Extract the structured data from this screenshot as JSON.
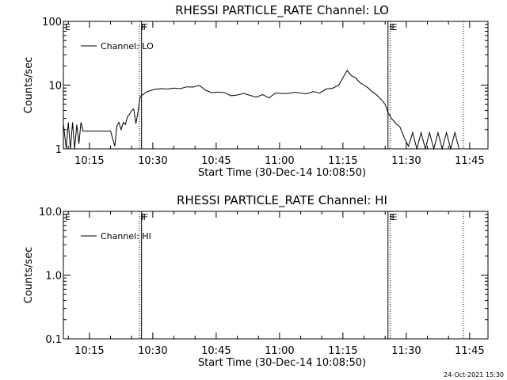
{
  "stamp": "24-Oct-2021 15:30",
  "chart_data": [
    {
      "type": "line",
      "title": "RHESSI PARTICLE_RATE Channel: LO",
      "xlabel": "Start Time (30-Dec-14 10:08:50)",
      "ylabel": "Counts/sec",
      "yscale": "log",
      "ylim": [
        1,
        100
      ],
      "yticks": [
        1,
        10,
        100
      ],
      "yticklabels": [
        "1",
        "10",
        "100"
      ],
      "xlim": [
        "10:08:50",
        "11:49:20"
      ],
      "xticks": [
        "10:15",
        "10:30",
        "10:45",
        "11:00",
        "11:15",
        "11:30",
        "11:45"
      ],
      "legend": {
        "placement": "top-left",
        "entries": [
          "Channel: LO"
        ]
      },
      "markers": [
        {
          "label": "E",
          "time": "10:08:50",
          "style": "none"
        },
        {
          "label": "F",
          "time": "10:26:50",
          "style": "dotted"
        },
        {
          "label": "F",
          "time": "10:27:20",
          "style": "solid"
        },
        {
          "label": "E",
          "time": "11:25:40",
          "style": "solid"
        },
        {
          "label": "E",
          "time": "11:26:10",
          "style": "dotted"
        },
        {
          "label": "",
          "time": "11:43:30",
          "style": "dotted"
        }
      ],
      "series": [
        {
          "x": [
            "10:08:50",
            "10:09:30",
            "10:10:00",
            "10:10:30",
            "10:11:00",
            "10:11:30",
            "10:12:00",
            "10:12:30",
            "10:13:00",
            "10:13:30",
            "10:14:00",
            "10:15:00",
            "10:16:00",
            "10:17:00",
            "10:18:00",
            "10:19:00",
            "10:20:00",
            "10:21:00",
            "10:21:30",
            "10:22:00",
            "10:22:30",
            "10:23:00",
            "10:23:30",
            "10:24:00",
            "10:24:30",
            "10:25:00",
            "10:25:30",
            "10:26:00",
            "10:26:30",
            "10:27:00",
            "10:27:30",
            "10:28:30",
            "10:29:30",
            "10:30:30",
            "10:32:00",
            "10:33:30",
            "10:35:00",
            "10:36:30",
            "10:38:00",
            "10:39:30",
            "10:41:00",
            "10:42:30",
            "10:44:00",
            "10:45:30",
            "10:47:00",
            "10:48:30",
            "10:50:00",
            "10:51:30",
            "10:53:00",
            "10:54:30",
            "10:56:00",
            "10:57:30",
            "10:59:00",
            "11:00:30",
            "11:02:00",
            "11:03:30",
            "11:05:00",
            "11:06:30",
            "11:08:00",
            "11:09:30",
            "11:11:00",
            "11:12:30",
            "11:14:00",
            "11:15:00",
            "11:16:00",
            "11:17:00",
            "11:18:00",
            "11:19:00",
            "11:20:00",
            "11:21:00",
            "11:22:00",
            "11:23:00",
            "11:24:00",
            "11:25:00",
            "11:25:40",
            "11:26:30",
            "11:27:30",
            "11:28:30",
            "11:29:30",
            "11:30:30",
            "11:31:30",
            "11:32:30",
            "11:33:30",
            "11:34:30",
            "11:35:30",
            "11:36:30",
            "11:37:30",
            "11:38:30",
            "11:39:30",
            "11:40:30",
            "11:41:30",
            "11:42:30"
          ],
          "y": [
            2.5,
            1.0,
            2.6,
            1.0,
            2.6,
            1.0,
            2.4,
            1.2,
            2.6,
            1.9,
            1.9,
            1.9,
            1.9,
            1.9,
            1.9,
            1.9,
            1.9,
            1.1,
            2.3,
            2.6,
            2.0,
            2.6,
            2.4,
            3.2,
            3.5,
            4.0,
            4.2,
            2.5,
            3.8,
            6.5,
            7.0,
            7.8,
            8.2,
            8.6,
            8.8,
            8.7,
            9.0,
            8.8,
            9.4,
            9.3,
            9.9,
            8.3,
            7.6,
            7.8,
            7.6,
            6.8,
            7.0,
            7.4,
            6.9,
            6.5,
            7.1,
            6.3,
            7.5,
            7.4,
            7.4,
            7.7,
            7.5,
            7.3,
            7.9,
            7.5,
            8.7,
            8.9,
            10.0,
            13.0,
            17.0,
            14.0,
            13.0,
            11.0,
            10.0,
            9.0,
            7.8,
            7.0,
            6.0,
            5.0,
            3.7,
            3.0,
            2.5,
            2.2,
            1.5,
            1.1,
            1.8,
            1.0,
            1.8,
            1.0,
            1.8,
            1.0,
            1.8,
            1.0,
            1.8,
            1.0,
            1.8,
            1.0
          ]
        }
      ]
    },
    {
      "type": "line",
      "title": "RHESSI PARTICLE_RATE Channel: HI",
      "xlabel": "Start Time (30-Dec-14 10:08:50)",
      "ylabel": "Counts/sec",
      "yscale": "log",
      "ylim": [
        0.1,
        10
      ],
      "yticks": [
        0.1,
        1,
        10
      ],
      "yticklabels": [
        "0.1",
        "1.0",
        "10.0"
      ],
      "xlim": [
        "10:08:50",
        "11:49:20"
      ],
      "xticks": [
        "10:15",
        "10:30",
        "10:45",
        "11:00",
        "11:15",
        "11:30",
        "11:45"
      ],
      "legend": {
        "placement": "top-left",
        "entries": [
          "Channel: HI"
        ]
      },
      "markers": [
        {
          "label": "E",
          "time": "10:08:50",
          "style": "none"
        },
        {
          "label": "F",
          "time": "10:26:50",
          "style": "dotted"
        },
        {
          "label": "F",
          "time": "10:27:20",
          "style": "solid"
        },
        {
          "label": "E",
          "time": "11:25:40",
          "style": "solid"
        },
        {
          "label": "E",
          "time": "11:26:10",
          "style": "dotted"
        },
        {
          "label": "",
          "time": "11:43:30",
          "style": "dotted"
        }
      ],
      "series": [
        {
          "x": [],
          "y": []
        }
      ]
    }
  ]
}
